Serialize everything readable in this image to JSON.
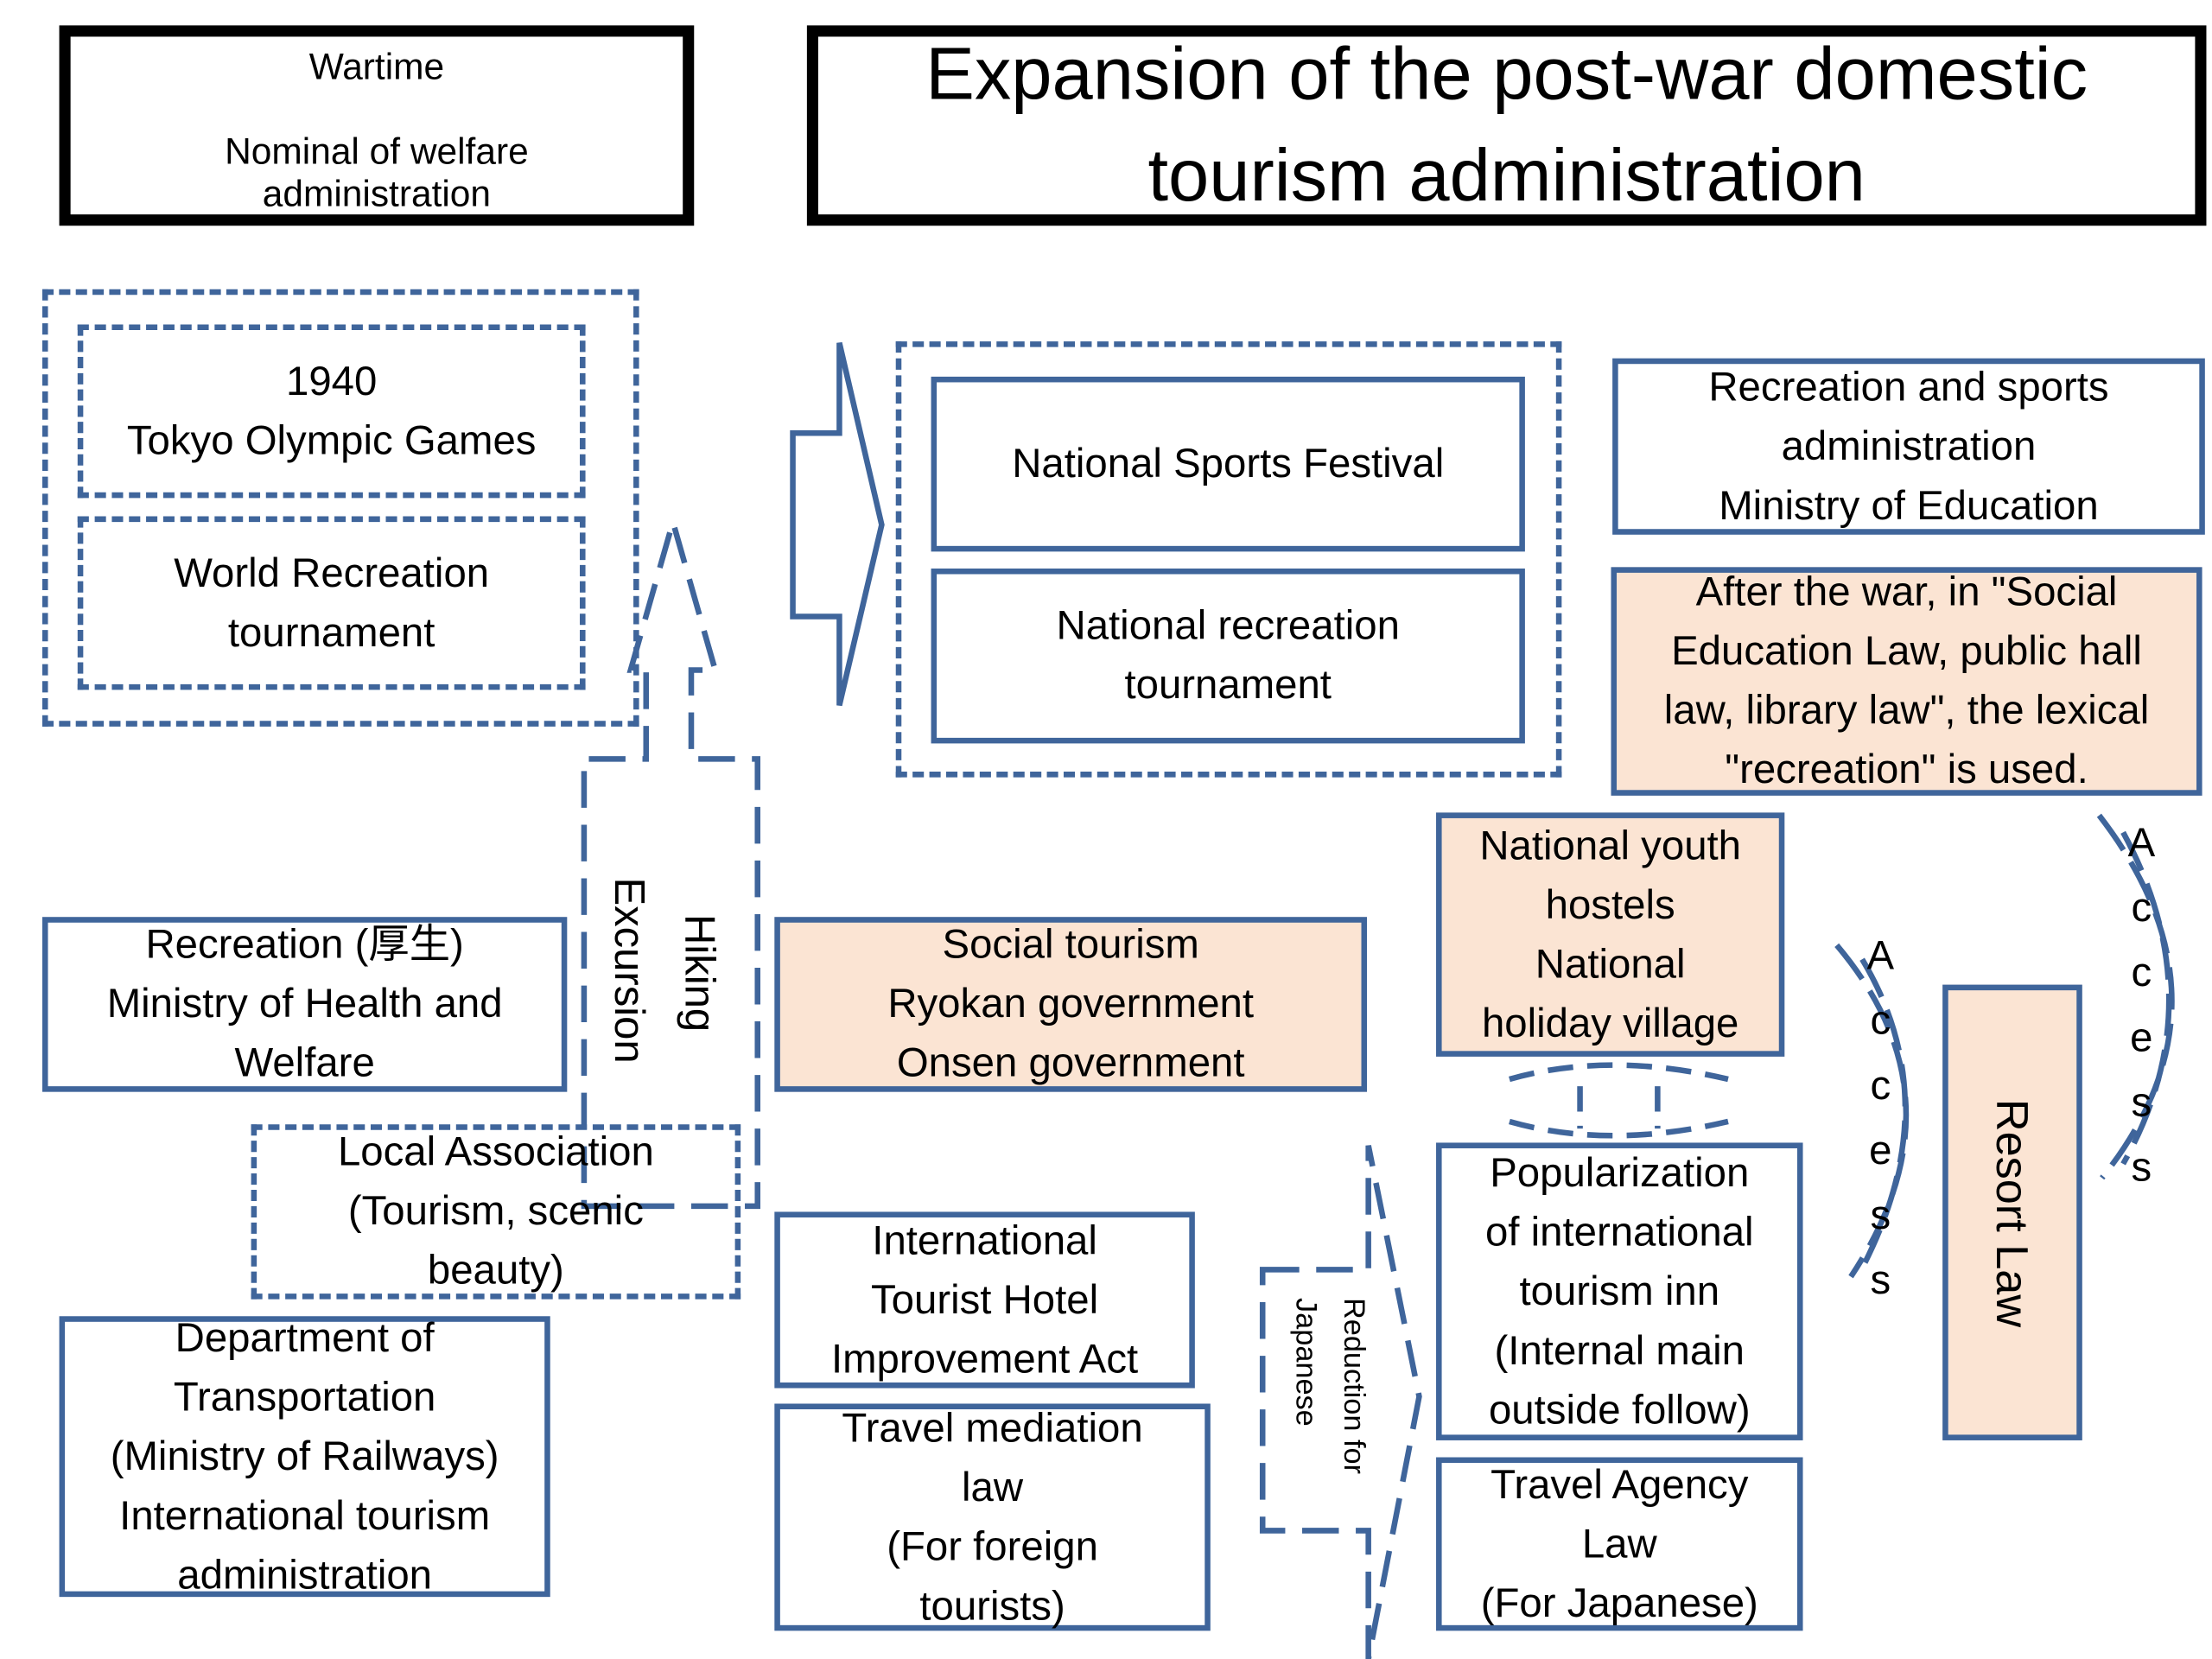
{
  "header": {
    "wartime_box": "Wartime\n\nNominal of welfare\nadministration",
    "title": "Expansion of the post-war domestic\ntourism administration"
  },
  "left_group": {
    "olympics": "1940\nTokyo Olympic Games",
    "world_recreation": "World Recreation\ntournament"
  },
  "arrows": {
    "hiking": "Hiking",
    "excursion": "Excursion",
    "reduction": "Reduction for\nJapanese",
    "access": "A\nc\nc\ne\ns\ns"
  },
  "center_group": {
    "sports_festival": "National Sports Festival",
    "recreation_tournament": "National recreation\ntournament"
  },
  "right_column": {
    "recreation_sports_admin": "Recreation and sports\nadministration\nMinistry of Education",
    "after_war": "After the war, in \"Social\nEducation Law, public hall\nlaw, library law\", the lexical\n\"recreation\" is used.",
    "youth_hostels": "National youth\nhostels\nNational\nholiday village",
    "popularization": "Popularization\nof international\ntourism inn\n(Internal main\noutside follow)",
    "travel_agency": "Travel Agency\nLaw\n(For Japanese)",
    "resort_law": "Resort Law"
  },
  "lower_left": {
    "recreation_health": "Recreation (厚生)\nMinistry of Health and\nWelfare",
    "local_association": "Local Association\n(Tourism, scenic\nbeauty)",
    "transportation": "Department of\nTransportation\n(Ministry of Railways)\nInternational tourism\nadministration"
  },
  "lower_center": {
    "social_tourism": "Social tourism\nRyokan government\nOnsen government",
    "hotel_act": "International\nTourist Hotel\nImprovement Act",
    "travel_mediation": "Travel mediation\nlaw\n(For foreign\ntourists)"
  },
  "colors": {
    "border": "#3f659b",
    "highlight": "#fbe4d3",
    "header_border": "#000000"
  }
}
